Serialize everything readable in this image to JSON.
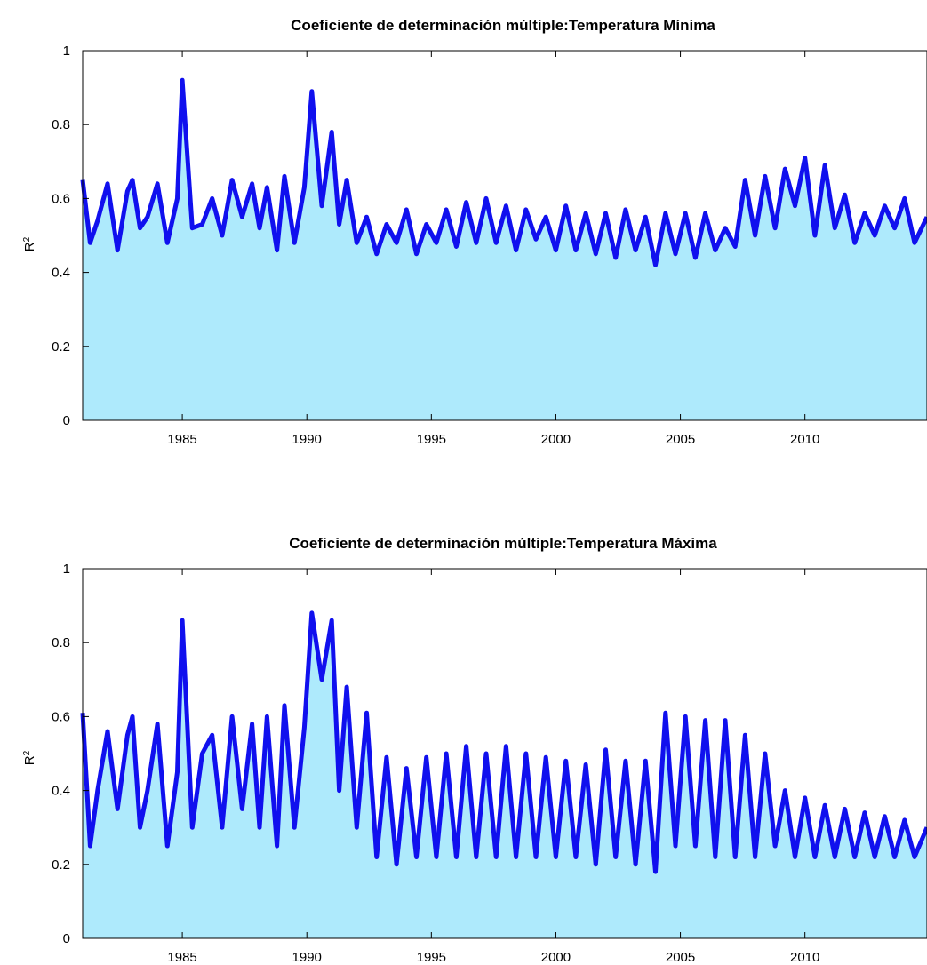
{
  "colors": {
    "line": "#1010ee",
    "fill": "#aeeafc",
    "axes": "#000000",
    "background": "#ffffff"
  },
  "chart_data": [
    {
      "type": "area",
      "title": "Coeficiente de determinación múltiple:Temperatura Mínima",
      "ylabel": "R",
      "ylabel_sup": "2",
      "xlim": [
        1981.0,
        2014.9
      ],
      "ylim": [
        0,
        1
      ],
      "xticks": [
        "1985",
        "1990",
        "1995",
        "2000",
        "2005",
        "2010"
      ],
      "yticks": [
        "0",
        "0.2",
        "0.4",
        "0.6",
        "0.8",
        "1"
      ],
      "grid": false,
      "x": [
        1981.0,
        1981.3,
        1981.6,
        1982.0,
        1982.4,
        1982.8,
        1983.0,
        1983.3,
        1983.6,
        1984.0,
        1984.4,
        1984.8,
        1985.0,
        1985.4,
        1985.8,
        1986.2,
        1986.6,
        1987.0,
        1987.4,
        1987.8,
        1988.1,
        1988.4,
        1988.8,
        1989.1,
        1989.5,
        1989.9,
        1990.2,
        1990.6,
        1991.0,
        1991.3,
        1991.6,
        1992.0,
        1992.4,
        1992.8,
        1993.2,
        1993.6,
        1994.0,
        1994.4,
        1994.8,
        1995.2,
        1995.6,
        1996.0,
        1996.4,
        1996.8,
        1997.2,
        1997.6,
        1998.0,
        1998.4,
        1998.8,
        1999.2,
        1999.6,
        2000.0,
        2000.4,
        2000.8,
        2001.2,
        2001.6,
        2002.0,
        2002.4,
        2002.8,
        2003.2,
        2003.6,
        2004.0,
        2004.4,
        2004.8,
        2005.2,
        2005.6,
        2006.0,
        2006.4,
        2006.8,
        2007.2,
        2007.6,
        2008.0,
        2008.4,
        2008.8,
        2009.2,
        2009.6,
        2010.0,
        2010.4,
        2010.8,
        2011.2,
        2011.6,
        2012.0,
        2012.4,
        2012.8,
        2013.2,
        2013.6,
        2014.0,
        2014.4,
        2014.9
      ],
      "y": [
        0.65,
        0.48,
        0.54,
        0.64,
        0.46,
        0.62,
        0.65,
        0.52,
        0.55,
        0.64,
        0.48,
        0.6,
        0.92,
        0.52,
        0.53,
        0.6,
        0.5,
        0.65,
        0.55,
        0.64,
        0.52,
        0.63,
        0.46,
        0.66,
        0.48,
        0.63,
        0.89,
        0.58,
        0.78,
        0.53,
        0.65,
        0.48,
        0.55,
        0.45,
        0.53,
        0.48,
        0.57,
        0.45,
        0.53,
        0.48,
        0.57,
        0.47,
        0.59,
        0.48,
        0.6,
        0.48,
        0.58,
        0.46,
        0.57,
        0.49,
        0.55,
        0.46,
        0.58,
        0.46,
        0.56,
        0.45,
        0.56,
        0.44,
        0.57,
        0.46,
        0.55,
        0.42,
        0.56,
        0.45,
        0.56,
        0.44,
        0.56,
        0.46,
        0.52,
        0.47,
        0.65,
        0.5,
        0.66,
        0.52,
        0.68,
        0.58,
        0.71,
        0.5,
        0.69,
        0.52,
        0.61,
        0.48,
        0.56,
        0.5,
        0.58,
        0.52,
        0.6,
        0.48,
        0.55
      ]
    },
    {
      "type": "area",
      "title": "Coeficiente de determinación múltiple:Temperatura Máxima",
      "ylabel": "R",
      "ylabel_sup": "2",
      "xlim": [
        1981.0,
        2014.9
      ],
      "ylim": [
        0,
        1
      ],
      "xticks": [
        "1985",
        "1990",
        "1995",
        "2000",
        "2005",
        "2010"
      ],
      "yticks": [
        "0",
        "0.2",
        "0.4",
        "0.6",
        "0.8",
        "1"
      ],
      "grid": false,
      "x": [
        1981.0,
        1981.3,
        1981.6,
        1982.0,
        1982.4,
        1982.8,
        1983.0,
        1983.3,
        1983.6,
        1984.0,
        1984.4,
        1984.8,
        1985.0,
        1985.4,
        1985.8,
        1986.2,
        1986.6,
        1987.0,
        1987.4,
        1987.8,
        1988.1,
        1988.4,
        1988.8,
        1989.1,
        1989.5,
        1989.9,
        1990.2,
        1990.6,
        1991.0,
        1991.3,
        1991.6,
        1992.0,
        1992.4,
        1992.8,
        1993.2,
        1993.6,
        1994.0,
        1994.4,
        1994.8,
        1995.2,
        1995.6,
        1996.0,
        1996.4,
        1996.8,
        1997.2,
        1997.6,
        1998.0,
        1998.4,
        1998.8,
        1999.2,
        1999.6,
        2000.0,
        2000.4,
        2000.8,
        2001.2,
        2001.6,
        2002.0,
        2002.4,
        2002.8,
        2003.2,
        2003.6,
        2004.0,
        2004.4,
        2004.8,
        2005.2,
        2005.6,
        2006.0,
        2006.4,
        2006.8,
        2007.2,
        2007.6,
        2008.0,
        2008.4,
        2008.8,
        2009.2,
        2009.6,
        2010.0,
        2010.4,
        2010.8,
        2011.2,
        2011.6,
        2012.0,
        2012.4,
        2012.8,
        2013.2,
        2013.6,
        2014.0,
        2014.4,
        2014.9
      ],
      "y": [
        0.61,
        0.25,
        0.4,
        0.56,
        0.35,
        0.55,
        0.6,
        0.3,
        0.4,
        0.58,
        0.25,
        0.45,
        0.86,
        0.3,
        0.5,
        0.55,
        0.3,
        0.6,
        0.35,
        0.58,
        0.3,
        0.6,
        0.25,
        0.63,
        0.3,
        0.57,
        0.88,
        0.7,
        0.86,
        0.4,
        0.68,
        0.3,
        0.61,
        0.22,
        0.49,
        0.2,
        0.46,
        0.22,
        0.49,
        0.22,
        0.5,
        0.22,
        0.52,
        0.22,
        0.5,
        0.22,
        0.52,
        0.22,
        0.5,
        0.22,
        0.49,
        0.22,
        0.48,
        0.22,
        0.47,
        0.2,
        0.51,
        0.22,
        0.48,
        0.2,
        0.48,
        0.18,
        0.61,
        0.25,
        0.6,
        0.25,
        0.59,
        0.22,
        0.59,
        0.22,
        0.55,
        0.22,
        0.5,
        0.25,
        0.4,
        0.22,
        0.38,
        0.22,
        0.36,
        0.22,
        0.35,
        0.22,
        0.34,
        0.22,
        0.33,
        0.22,
        0.32,
        0.22,
        0.3
      ]
    }
  ]
}
